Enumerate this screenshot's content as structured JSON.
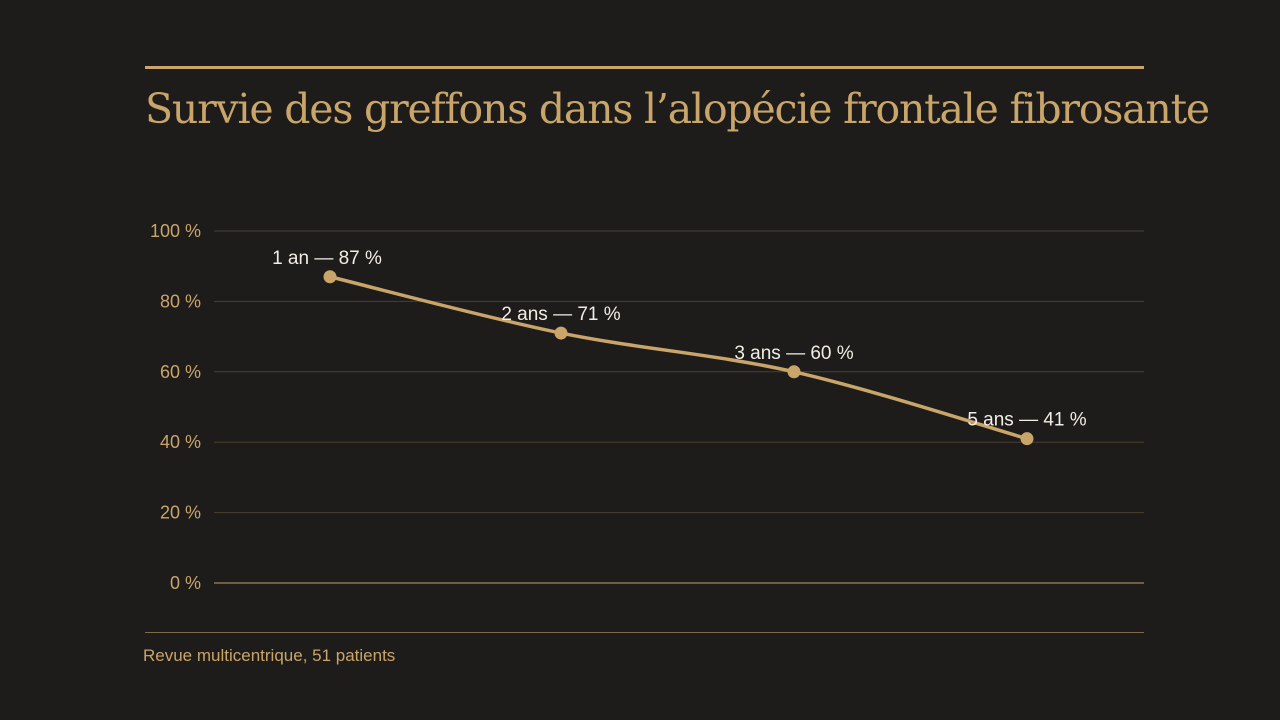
{
  "title": "Survie des greffons dans l’alopécie frontale fibrosante",
  "source": "Revue multicentrique, 51 patients",
  "colors": {
    "background": "#1d1c1b",
    "accent": "#c9a56a",
    "gridline": "#4a4030",
    "label_text": "#f2ede4"
  },
  "chart_data": {
    "type": "line",
    "title": "Survie des greffons dans l’alopécie frontale fibrosante",
    "xlabel": "",
    "ylabel": "",
    "x": [
      1,
      2,
      3,
      5
    ],
    "series": [
      {
        "values": [
          87,
          71,
          60,
          41
        ]
      }
    ],
    "data_labels": [
      "1 an — 87 %",
      "2 ans — 71 %",
      "3 ans — 60 %",
      "5 ans — 41 %"
    ],
    "ylim": [
      0,
      100
    ],
    "yticks": [
      0,
      20,
      40,
      60,
      80,
      100
    ],
    "ytick_labels": [
      "0 %",
      "20 %",
      "40 %",
      "60 %",
      "80 %",
      "100 %"
    ],
    "grid": true,
    "legend": "none",
    "line_style": "smooth"
  }
}
